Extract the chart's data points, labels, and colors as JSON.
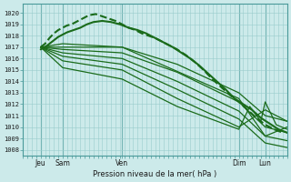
{
  "bg_color": "#cceaea",
  "grid_color": "#99cccc",
  "line_color": "#1a6b1a",
  "ylabel_ticks": [
    1008,
    1009,
    1010,
    1011,
    1012,
    1013,
    1014,
    1015,
    1016,
    1017,
    1018,
    1019,
    1020
  ],
  "ylim": [
    1007.5,
    1020.8
  ],
  "xlim": [
    0,
    120
  ],
  "xtick_positions": [
    8,
    18,
    45,
    98,
    110
  ],
  "xtick_labels": [
    "Jeu",
    "Sam",
    "Ven",
    "Dim",
    "Lun"
  ],
  "xlabel": "Pression niveau de la mer( hPa )",
  "vline_positions": [
    8,
    18,
    45,
    98,
    110
  ],
  "series": [
    {
      "x": [
        8,
        10,
        12,
        14,
        16,
        18,
        20,
        22,
        25,
        28,
        30,
        33,
        36,
        39,
        42,
        45,
        48,
        51,
        54,
        57,
        60,
        63,
        66,
        70,
        74,
        78,
        82,
        86,
        90,
        94,
        98,
        102,
        106,
        110,
        114,
        118
      ],
      "y": [
        1017.0,
        1017.3,
        1017.8,
        1018.2,
        1018.5,
        1018.7,
        1018.9,
        1019.0,
        1019.3,
        1019.6,
        1019.8,
        1019.9,
        1019.7,
        1019.5,
        1019.3,
        1019.0,
        1018.7,
        1018.5,
        1018.2,
        1018.0,
        1017.8,
        1017.5,
        1017.2,
        1016.8,
        1016.3,
        1015.7,
        1015.0,
        1014.2,
        1013.5,
        1012.8,
        1012.2,
        1011.5,
        1010.8,
        1010.2,
        1009.8,
        1009.5
      ],
      "lw": 1.5,
      "dashed": true
    },
    {
      "x": [
        8,
        10,
        12,
        14,
        16,
        18,
        20,
        23,
        26,
        29,
        32,
        36,
        40,
        44,
        48,
        52,
        56,
        60,
        64,
        68,
        72,
        76,
        80,
        84,
        88,
        92,
        96,
        100,
        104,
        108,
        112,
        116,
        120
      ],
      "y": [
        1016.8,
        1017.0,
        1017.3,
        1017.6,
        1017.9,
        1018.1,
        1018.3,
        1018.5,
        1018.7,
        1019.0,
        1019.2,
        1019.3,
        1019.2,
        1019.0,
        1018.7,
        1018.5,
        1018.2,
        1017.8,
        1017.4,
        1017.0,
        1016.5,
        1016.0,
        1015.4,
        1014.7,
        1014.0,
        1013.3,
        1012.5,
        1012.0,
        1011.5,
        1010.8,
        1010.3,
        1009.8,
        1009.5
      ],
      "lw": 1.5,
      "dashed": false
    },
    {
      "x": [
        8,
        18,
        45,
        70,
        98,
        110,
        120
      ],
      "y": [
        1017.0,
        1017.0,
        1017.0,
        1015.5,
        1013.0,
        1011.0,
        1010.5
      ],
      "lw": 0.9,
      "dashed": false
    },
    {
      "x": [
        8,
        18,
        45,
        70,
        98,
        110,
        120
      ],
      "y": [
        1017.0,
        1016.8,
        1016.5,
        1014.8,
        1012.2,
        1010.0,
        1009.5
      ],
      "lw": 0.9,
      "dashed": false
    },
    {
      "x": [
        8,
        18,
        45,
        70,
        98,
        110,
        120
      ],
      "y": [
        1017.0,
        1016.5,
        1016.0,
        1014.0,
        1011.4,
        1009.2,
        1008.8
      ],
      "lw": 0.9,
      "dashed": false
    },
    {
      "x": [
        8,
        18,
        45,
        70,
        98,
        110,
        120
      ],
      "y": [
        1017.0,
        1016.2,
        1015.5,
        1013.3,
        1010.7,
        1008.6,
        1008.2
      ],
      "lw": 0.9,
      "dashed": false
    },
    {
      "x": [
        8,
        18,
        45,
        70,
        98,
        110,
        120
      ],
      "y": [
        1017.0,
        1015.8,
        1015.0,
        1012.5,
        1010.0,
        1011.5,
        1010.5
      ],
      "lw": 0.9,
      "dashed": false
    },
    {
      "x": [
        8,
        18,
        45,
        70,
        98,
        103,
        108,
        110,
        115,
        120
      ],
      "y": [
        1017.0,
        1015.2,
        1014.2,
        1011.8,
        1009.8,
        1011.8,
        1010.5,
        1012.2,
        1010.2,
        1009.8
      ],
      "lw": 0.9,
      "dashed": false
    },
    {
      "x": [
        8,
        18,
        45,
        98,
        110,
        120
      ],
      "y": [
        1017.0,
        1017.3,
        1017.0,
        1012.5,
        1009.2,
        1010.0
      ],
      "lw": 0.9,
      "dashed": false
    }
  ]
}
